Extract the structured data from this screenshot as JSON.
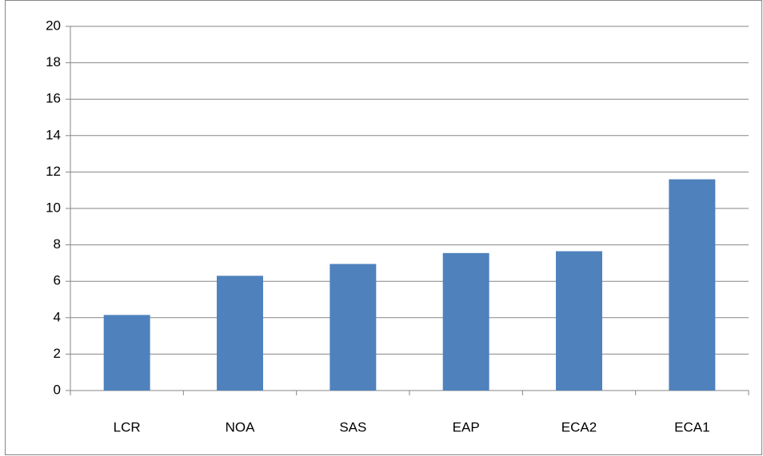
{
  "chart_data": {
    "type": "bar",
    "categories": [
      "LCR",
      "NOA",
      "SAS",
      "EAP",
      "ECA2",
      "ECA1"
    ],
    "values": [
      4.15,
      6.3,
      6.95,
      7.55,
      7.65,
      11.6
    ],
    "color": "#4f81bd",
    "ylim": [
      0,
      20
    ],
    "yticks": [
      0,
      2,
      4,
      6,
      8,
      10,
      12,
      14,
      16,
      18,
      20
    ],
    "grid": true
  }
}
